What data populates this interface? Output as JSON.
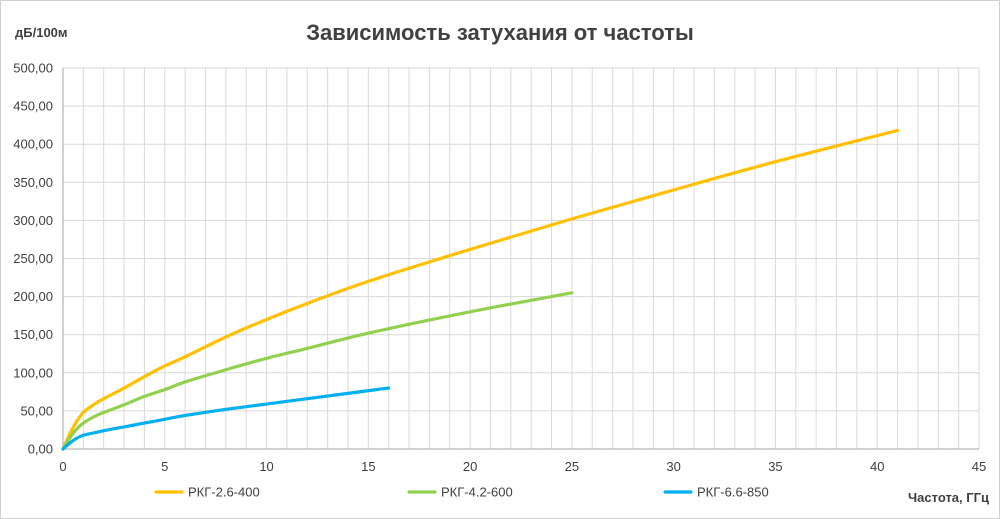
{
  "chart_data": {
    "type": "line",
    "title": "Зависимость затухания от частоты",
    "ylabel": "дБ/100м",
    "xlabel": "Частота, ГГц",
    "xlim": [
      0,
      45
    ],
    "ylim": [
      0,
      500
    ],
    "xticks": [
      "0",
      "5",
      "10",
      "15",
      "20",
      "25",
      "30",
      "35",
      "40",
      "45"
    ],
    "yticks": [
      "0,00",
      "50,00",
      "100,00",
      "150,00",
      "200,00",
      "250,00",
      "300,00",
      "350,00",
      "400,00",
      "450,00",
      "500,00"
    ],
    "grid": true,
    "legend_position": "bottom",
    "series": [
      {
        "name": "РКГ-2.6-400",
        "color": "#ffc000",
        "points": [
          [
            0,
            0
          ],
          [
            0.3,
            18
          ],
          [
            0.6,
            33
          ],
          [
            1,
            48
          ],
          [
            1.5,
            58
          ],
          [
            2,
            66
          ],
          [
            3,
            80
          ],
          [
            4,
            95
          ],
          [
            5,
            109
          ],
          [
            6,
            121
          ],
          [
            8,
            147
          ],
          [
            10,
            170
          ],
          [
            12,
            191
          ],
          [
            15,
            220
          ],
          [
            20,
            262
          ],
          [
            25,
            302
          ],
          [
            30,
            340
          ],
          [
            35,
            377
          ],
          [
            41,
            418
          ]
        ]
      },
      {
        "name": "РКГ-4.2-600",
        "color": "#92d050",
        "points": [
          [
            0,
            0
          ],
          [
            0.3,
            13
          ],
          [
            0.6,
            24
          ],
          [
            1,
            34
          ],
          [
            1.5,
            42
          ],
          [
            2,
            48
          ],
          [
            3,
            58
          ],
          [
            4,
            69
          ],
          [
            5,
            78
          ],
          [
            6,
            88
          ],
          [
            8,
            104
          ],
          [
            10,
            119
          ],
          [
            12,
            132
          ],
          [
            15,
            152
          ],
          [
            20,
            180
          ],
          [
            25,
            205
          ]
        ]
      },
      {
        "name": "РКГ-6.6-850",
        "color": "#00b0f0",
        "points": [
          [
            0,
            0
          ],
          [
            0.3,
            7
          ],
          [
            0.6,
            13
          ],
          [
            1,
            18
          ],
          [
            1.5,
            21
          ],
          [
            2,
            24
          ],
          [
            3,
            29
          ],
          [
            4,
            34
          ],
          [
            5,
            39
          ],
          [
            6,
            44
          ],
          [
            8,
            52
          ],
          [
            10,
            59
          ],
          [
            12,
            66
          ],
          [
            14,
            73
          ],
          [
            16,
            80
          ]
        ]
      }
    ]
  }
}
